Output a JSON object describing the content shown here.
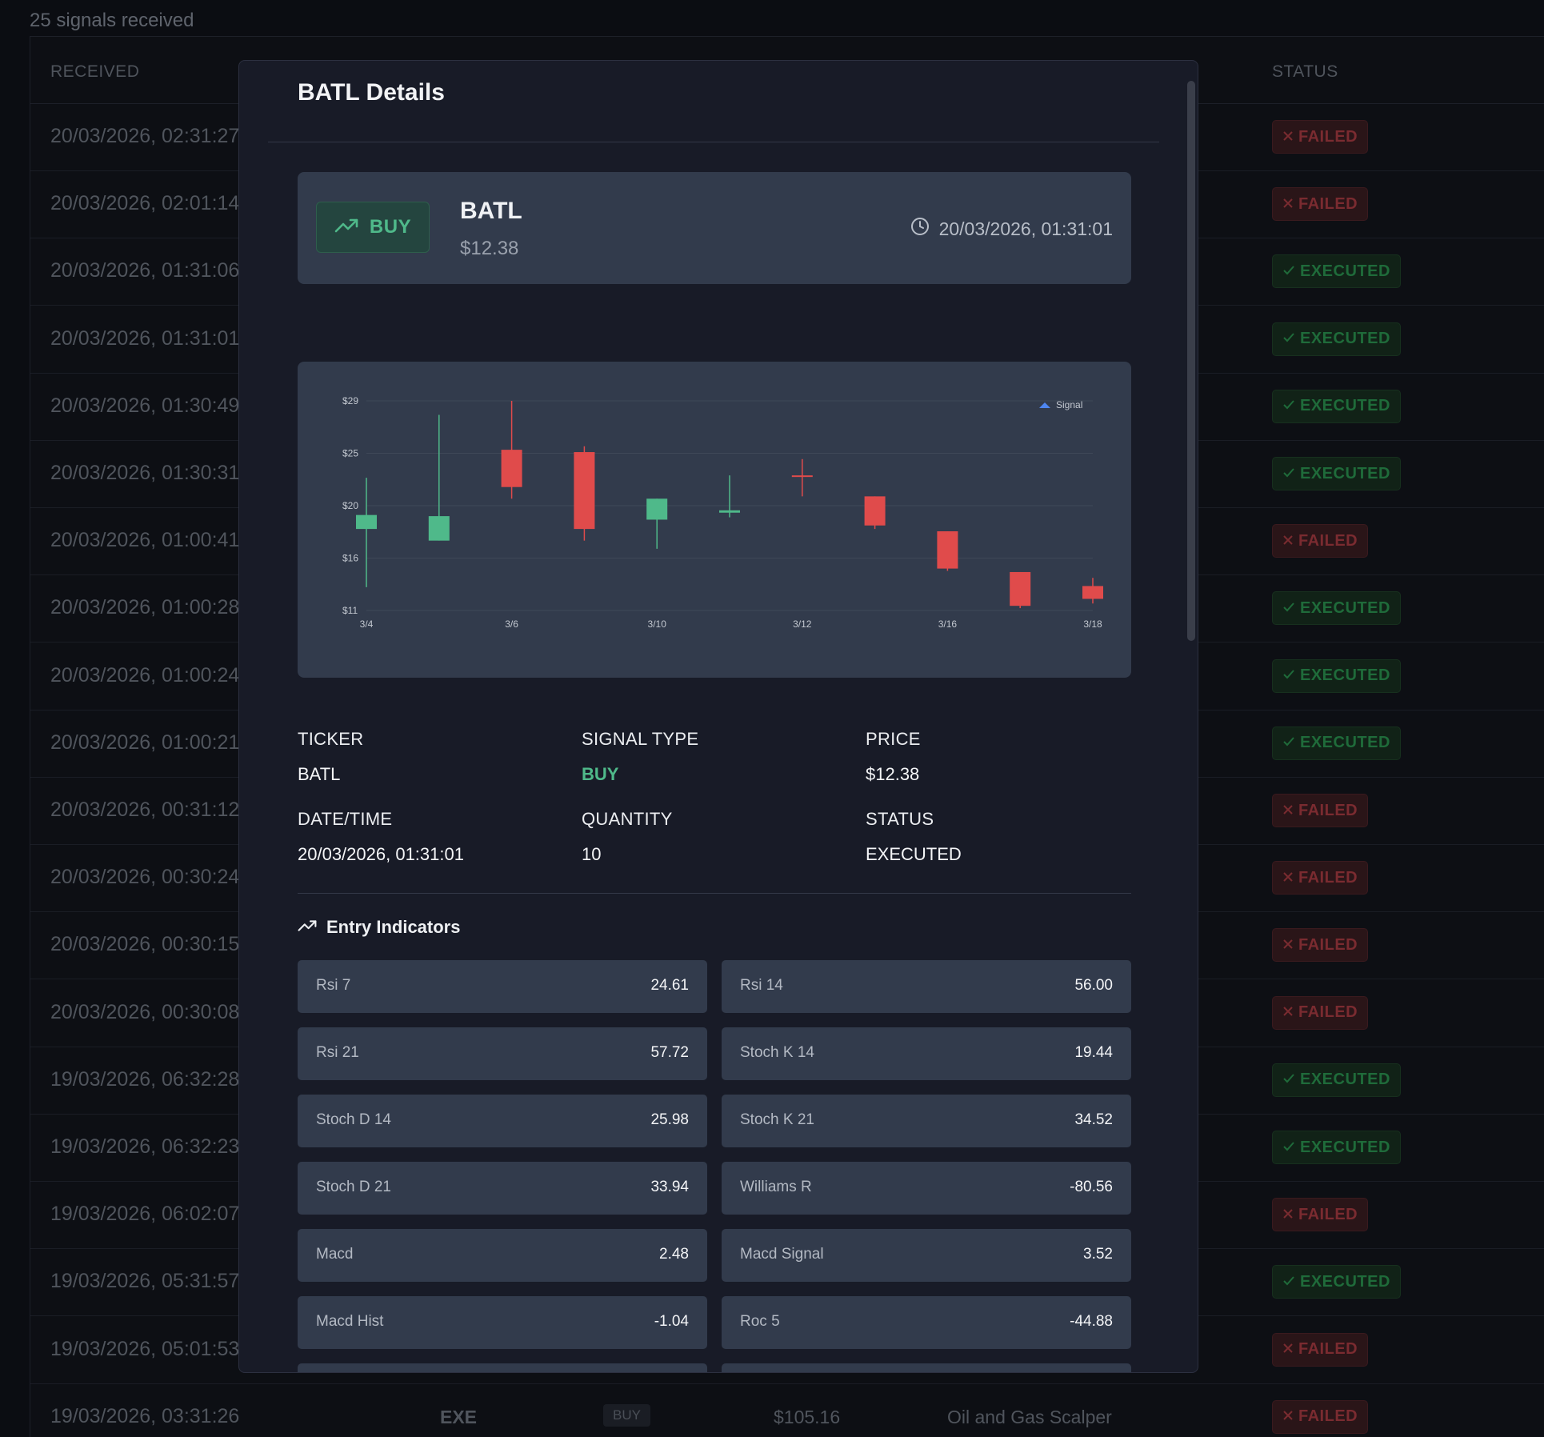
{
  "page": {
    "signal_count": "25 signals received",
    "columns": {
      "received": "RECEIVED",
      "status": "STATUS"
    },
    "rows": [
      {
        "time": "20/03/2026, 02:31:27",
        "status": "FAILED"
      },
      {
        "time": "20/03/2026, 02:01:14",
        "status": "FAILED"
      },
      {
        "time": "20/03/2026, 01:31:06",
        "status": "EXECUTED"
      },
      {
        "time": "20/03/2026, 01:31:01",
        "status": "EXECUTED"
      },
      {
        "time": "20/03/2026, 01:30:49",
        "status": "EXECUTED"
      },
      {
        "time": "20/03/2026, 01:30:31",
        "status": "EXECUTED"
      },
      {
        "time": "20/03/2026, 01:00:41",
        "status": "FAILED"
      },
      {
        "time": "20/03/2026, 01:00:28",
        "status": "EXECUTED"
      },
      {
        "time": "20/03/2026, 01:00:24",
        "status": "EXECUTED"
      },
      {
        "time": "20/03/2026, 01:00:21",
        "status": "EXECUTED"
      },
      {
        "time": "20/03/2026, 00:31:12",
        "status": "FAILED"
      },
      {
        "time": "20/03/2026, 00:30:24",
        "status": "FAILED"
      },
      {
        "time": "20/03/2026, 00:30:15",
        "status": "FAILED"
      },
      {
        "time": "20/03/2026, 00:30:08",
        "status": "FAILED"
      },
      {
        "time": "19/03/2026, 06:32:28",
        "status": "EXECUTED"
      },
      {
        "time": "19/03/2026, 06:32:23",
        "status": "EXECUTED"
      },
      {
        "time": "19/03/2026, 06:02:07",
        "status": "FAILED"
      },
      {
        "time": "19/03/2026, 05:31:57",
        "status": "EXECUTED"
      },
      {
        "time": "19/03/2026, 05:01:53",
        "status": "FAILED"
      },
      {
        "time": "19/03/2026, 03:31:26",
        "status": "FAILED",
        "ticker": "EXE",
        "type": "BUY",
        "price": "$105.16",
        "strategy": "Oil and Gas Scalper"
      }
    ]
  },
  "modal": {
    "title": "BATL Details",
    "summary": {
      "type_label": "BUY",
      "ticker": "BATL",
      "price": "$12.38",
      "datetime": "20/03/2026, 01:31:01"
    },
    "details": {
      "ticker_label": "TICKER",
      "ticker_value": "BATL",
      "type_label": "SIGNAL TYPE",
      "type_value": "BUY",
      "price_label": "PRICE",
      "price_value": "$12.38",
      "datetime_label": "DATE/TIME",
      "datetime_value": "20/03/2026, 01:31:01",
      "quantity_label": "QUANTITY",
      "quantity_value": "10",
      "status_label": "STATUS",
      "status_value": "EXECUTED"
    },
    "indicators_title": "Entry Indicators",
    "indicators": [
      {
        "name": "Rsi 7",
        "value": "24.61"
      },
      {
        "name": "Rsi 14",
        "value": "56.00"
      },
      {
        "name": "Rsi 21",
        "value": "57.72"
      },
      {
        "name": "Stoch K 14",
        "value": "19.44"
      },
      {
        "name": "Stoch D 14",
        "value": "25.98"
      },
      {
        "name": "Stoch K 21",
        "value": "34.52"
      },
      {
        "name": "Stoch D 21",
        "value": "33.94"
      },
      {
        "name": "Williams R",
        "value": "-80.56"
      },
      {
        "name": "Macd",
        "value": "2.48"
      },
      {
        "name": "Macd Signal",
        "value": "3.52"
      },
      {
        "name": "Macd Hist",
        "value": "-1.04"
      },
      {
        "name": "Roc 5",
        "value": "-44.88"
      }
    ]
  },
  "colors": {
    "up": "#4fb98a",
    "down": "#e04b4b",
    "signal_marker": "#4e86f0",
    "accent_buy": "#4fb98a"
  },
  "chart_data": {
    "type": "candlestick",
    "y_ticks": [
      "$29",
      "$25",
      "$20",
      "$16",
      "$11"
    ],
    "x_ticks": [
      "3/4",
      "3/6",
      "3/10",
      "3/12",
      "3/16",
      "3/18"
    ],
    "legend": [
      "Signal"
    ],
    "legend_position": "top-right",
    "grid": true,
    "candles": [
      {
        "x": "3/4",
        "open": 18.0,
        "close": 19.2,
        "high": 22.4,
        "low": 13.0
      },
      {
        "x": "3/5",
        "open": 17.0,
        "close": 19.1,
        "high": 27.8,
        "low": 17.0
      },
      {
        "x": "3/6",
        "open": 24.8,
        "close": 21.6,
        "high": 29.0,
        "low": 20.6
      },
      {
        "x": "3/9",
        "open": 24.6,
        "close": 18.0,
        "high": 25.1,
        "low": 17.0
      },
      {
        "x": "3/10",
        "open": 18.8,
        "close": 20.6,
        "high": 20.6,
        "low": 16.3
      },
      {
        "x": "3/11",
        "open": 19.4,
        "close": 19.6,
        "high": 22.6,
        "low": 19.0
      },
      {
        "x": "3/12",
        "open": 22.6,
        "close": 22.5,
        "high": 24.0,
        "low": 20.8
      },
      {
        "x": "3/13",
        "open": 20.8,
        "close": 18.3,
        "high": 20.8,
        "low": 18.0
      },
      {
        "x": "3/16",
        "open": 17.8,
        "close": 14.6,
        "high": 17.8,
        "low": 14.4
      },
      {
        "x": "3/17",
        "open": 14.3,
        "close": 11.4,
        "high": 14.3,
        "low": 11.2
      },
      {
        "x": "3/18",
        "open": 13.1,
        "close": 12.0,
        "high": 13.8,
        "low": 11.6
      }
    ],
    "ylim": [
      11,
      29
    ]
  }
}
